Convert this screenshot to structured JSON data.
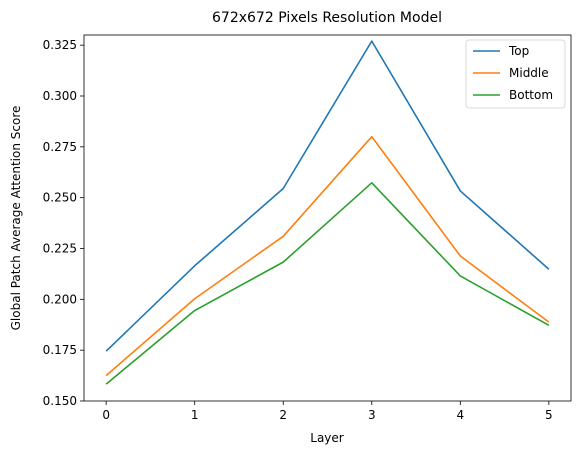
{
  "chart_data": {
    "type": "line",
    "title": "672x672 Pixels Resolution Model",
    "xlabel": "Layer",
    "ylabel": "Global Patch Average Attention Score",
    "x": [
      0,
      1,
      2,
      3,
      4,
      5
    ],
    "xticks": [
      "0",
      "1",
      "2",
      "3",
      "4",
      "5"
    ],
    "yticks": [
      "0.150",
      "0.175",
      "0.200",
      "0.225",
      "0.250",
      "0.275",
      "0.300",
      "0.325"
    ],
    "ylim": [
      0.15,
      0.33
    ],
    "xlim": [
      -0.25,
      5.25
    ],
    "grid": false,
    "legend_position": "top-right",
    "series": [
      {
        "name": "Top",
        "color": "#1f77b4",
        "values": [
          0.1745,
          0.2165,
          0.2545,
          0.327,
          0.2533,
          0.2148
        ]
      },
      {
        "name": "Middle",
        "color": "#ff7f0e",
        "values": [
          0.1625,
          0.2003,
          0.231,
          0.28,
          0.2213,
          0.1888
        ]
      },
      {
        "name": "Bottom",
        "color": "#2ca02c",
        "values": [
          0.1583,
          0.1945,
          0.2183,
          0.2573,
          0.2115,
          0.1872
        ]
      }
    ]
  }
}
